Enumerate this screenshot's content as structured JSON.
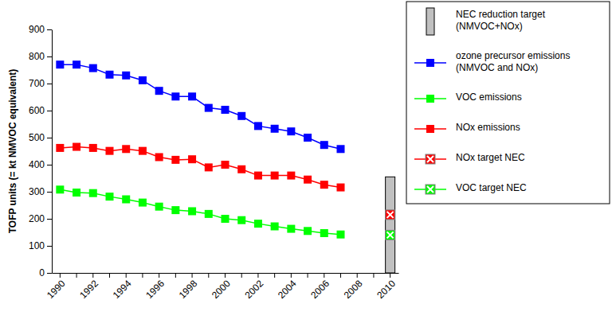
{
  "chart_data": {
    "type": "line",
    "y_label": "TOFP units (= kt NMVOC equivalent)",
    "categories": [
      "1990",
      null,
      "1992",
      null,
      "1994",
      null,
      "1996",
      null,
      "1998",
      null,
      "2000",
      null,
      "2002",
      null,
      "2004",
      null,
      "2006",
      null,
      "2008",
      null,
      "2010"
    ],
    "ylim": [
      0,
      900
    ],
    "yticks": [
      0,
      100,
      200,
      300,
      400,
      500,
      600,
      700,
      800,
      900
    ],
    "grid": false,
    "legend": "right",
    "series": [
      {
        "name": "NEC reduction target (NMVOC+NOx)",
        "type": "bar",
        "color": "#c0c0c0",
        "values": [
          null,
          null,
          null,
          null,
          null,
          null,
          null,
          null,
          null,
          null,
          null,
          null,
          null,
          null,
          null,
          null,
          null,
          null,
          null,
          null,
          355
        ]
      },
      {
        "name": "ozone precursor emissions (NMVOC and NOx)",
        "type": "line",
        "color": "#0000ff",
        "marker": "square",
        "values": [
          770,
          770,
          757,
          733,
          730,
          712,
          673,
          652,
          652,
          610,
          603,
          580,
          543,
          533,
          523,
          500,
          473,
          458,
          null,
          null,
          null
        ]
      },
      {
        "name": "VOC emissions",
        "type": "line",
        "color": "#00ff00",
        "marker": "square",
        "values": [
          308,
          297,
          295,
          282,
          272,
          260,
          245,
          232,
          228,
          218,
          200,
          195,
          182,
          172,
          163,
          155,
          147,
          142,
          null,
          null,
          null
        ]
      },
      {
        "name": "NOx emissions",
        "type": "line",
        "color": "#ff0000",
        "marker": "square",
        "values": [
          462,
          466,
          462,
          451,
          458,
          451,
          428,
          418,
          420,
          390,
          400,
          383,
          360,
          360,
          360,
          345,
          326,
          316,
          null,
          null,
          null
        ]
      },
      {
        "name": "NOx target NEC",
        "type": "scatter",
        "color": "#ff0000",
        "marker": "x",
        "values": [
          null,
          null,
          null,
          null,
          null,
          null,
          null,
          null,
          null,
          null,
          null,
          null,
          null,
          null,
          null,
          null,
          null,
          null,
          null,
          null,
          215
        ]
      },
      {
        "name": "VOC target NEC",
        "type": "scatter",
        "color": "#00ff00",
        "marker": "x",
        "values": [
          null,
          null,
          null,
          null,
          null,
          null,
          null,
          null,
          null,
          null,
          null,
          null,
          null,
          null,
          null,
          null,
          null,
          null,
          null,
          null,
          140
        ]
      }
    ]
  }
}
